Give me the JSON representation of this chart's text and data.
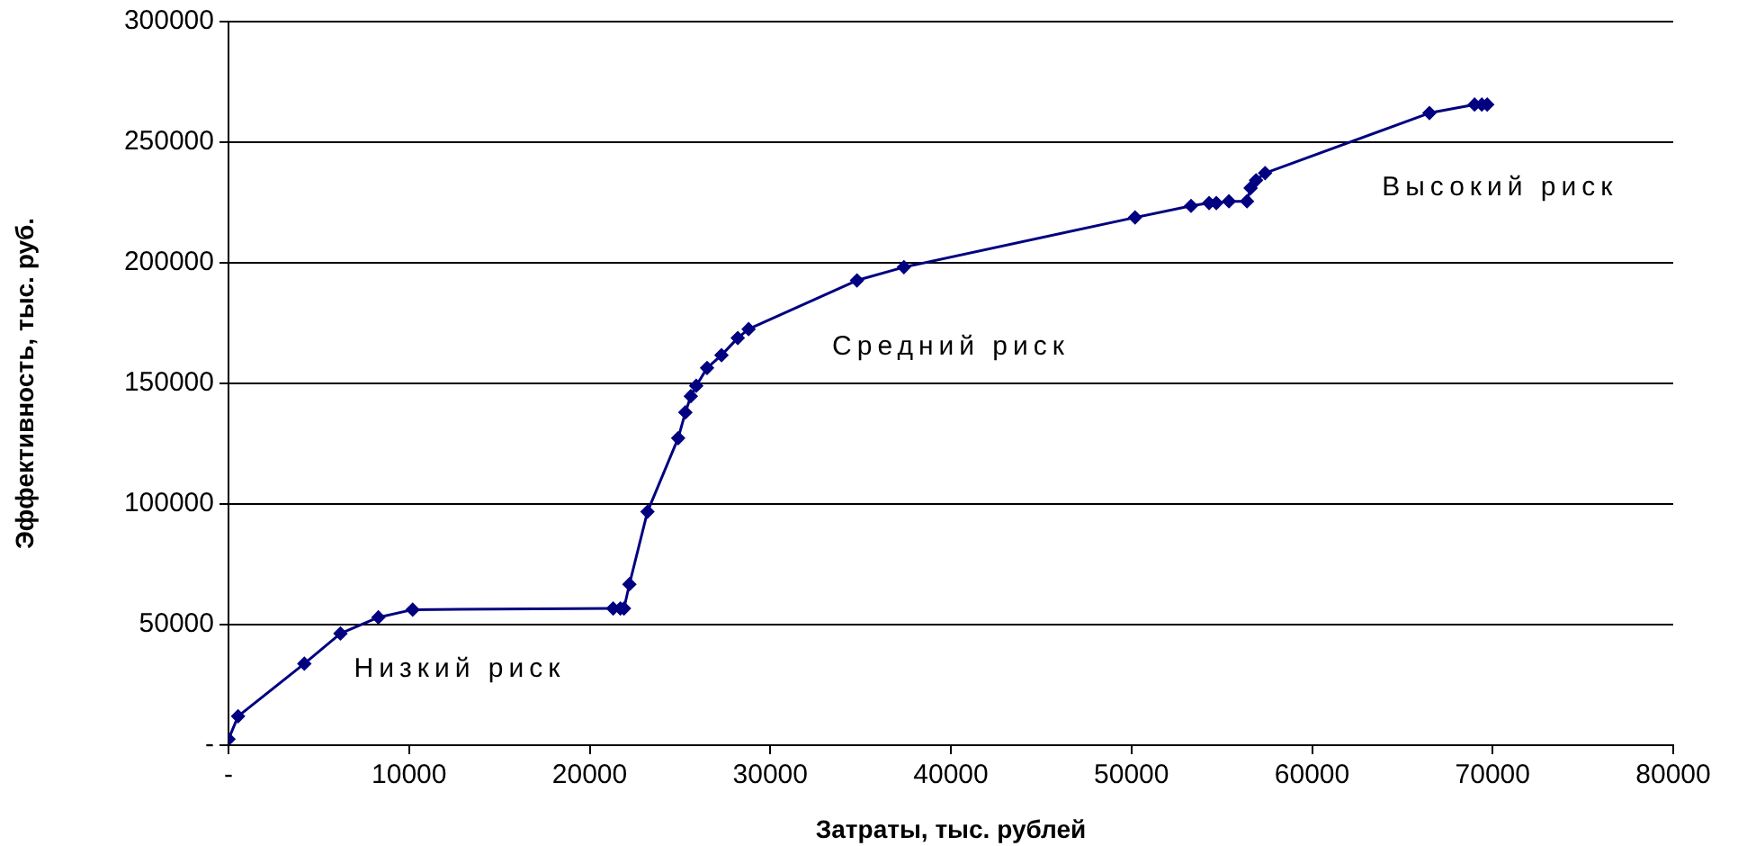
{
  "chart_data": {
    "type": "line",
    "xlabel": "Затраты, тыс. рублей",
    "ylabel": "Эффективность, тыс. руб.",
    "x": [
      0,
      530,
      4200,
      6200,
      8300,
      10200,
      21300,
      21700,
      21900,
      22200,
      23200,
      24900,
      25300,
      25600,
      25900,
      26500,
      27300,
      28200,
      28800,
      34800,
      37400,
      50200,
      53300,
      54300,
      54700,
      55400,
      56400,
      56600,
      56900,
      57400,
      66500,
      69000,
      69400,
      69700
    ],
    "series": [
      {
        "color": "#000080",
        "values": [
          2500,
          12000,
          33800,
          46300,
          53000,
          56200,
          56700,
          56700,
          56700,
          66700,
          96800,
          127300,
          138000,
          144700,
          149000,
          156400,
          161700,
          168800,
          172500,
          192700,
          198200,
          218800,
          223600,
          224800,
          224800,
          225500,
          225500,
          231000,
          234200,
          237200,
          262100,
          265600,
          265600,
          265600
        ]
      }
    ],
    "xlim": [
      0,
      80000
    ],
    "xticks": [
      {
        "value": 0,
        "label": "-"
      },
      10000,
      20000,
      30000,
      40000,
      50000,
      60000,
      70000,
      80000
    ],
    "ylim": [
      0,
      300000
    ],
    "yticks": [
      {
        "value": 0,
        "label": "-"
      },
      50000,
      100000,
      150000,
      200000,
      250000,
      300000
    ],
    "grid": "y",
    "marker": "diamond",
    "line_style": "solid",
    "legend": false,
    "annotations": [
      "Низкий риск",
      "Средний риск",
      "Высокий риск"
    ]
  }
}
